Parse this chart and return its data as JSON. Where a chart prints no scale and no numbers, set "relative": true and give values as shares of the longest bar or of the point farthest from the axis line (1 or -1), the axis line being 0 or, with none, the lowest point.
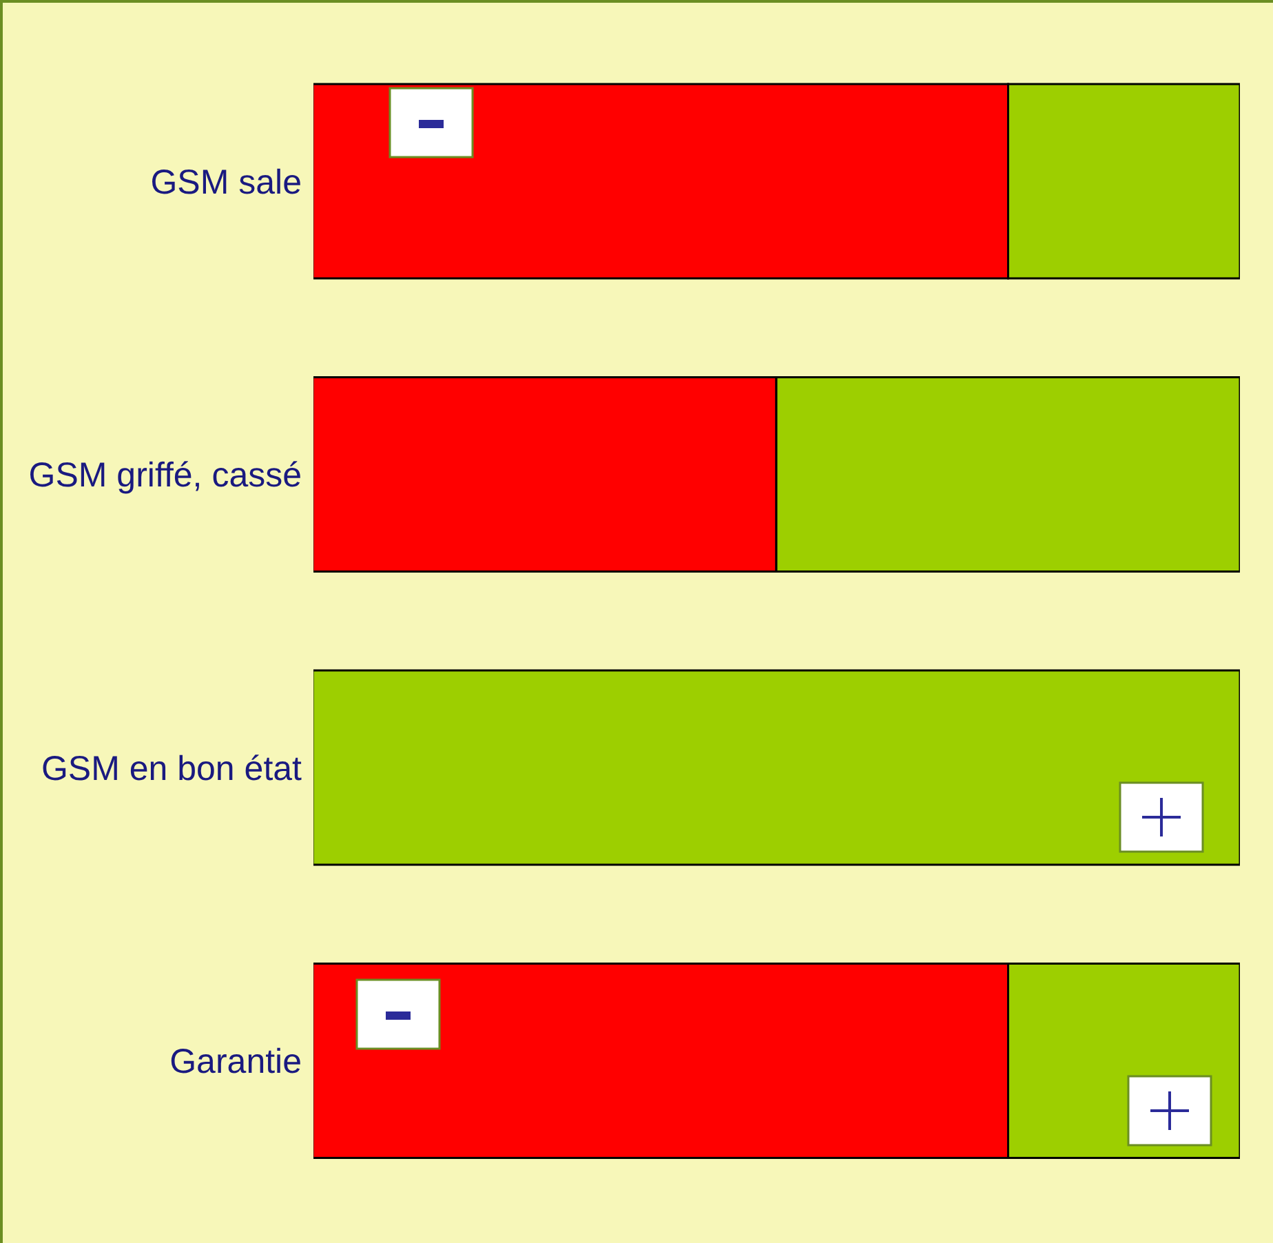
{
  "chart_data": {
    "type": "bar",
    "orientation": "horizontal",
    "stacked": true,
    "relative": true,
    "categories": [
      "GSM sale",
      "GSM griffé, cassé",
      "GSM en bon état",
      "Garantie"
    ],
    "series": [
      {
        "color": "#ff0000",
        "values": [
          0.75,
          0.5,
          0,
          0.75
        ]
      },
      {
        "color": "#9dcf00",
        "values": [
          0.25,
          0.5,
          1,
          0.25
        ]
      }
    ]
  }
}
